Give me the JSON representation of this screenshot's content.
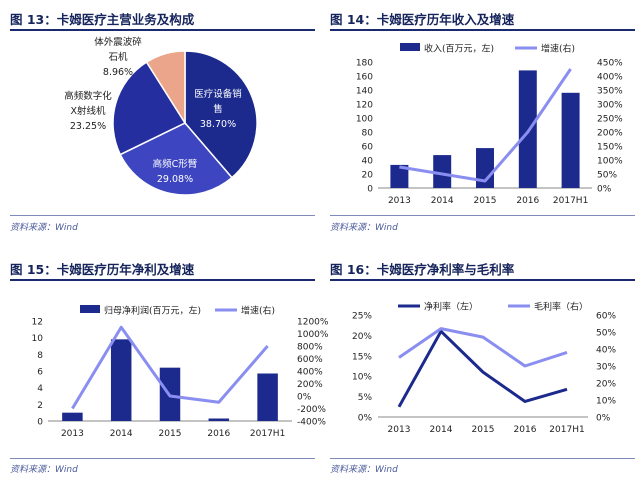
{
  "colors": {
    "navy": "#1b2a8c",
    "lavender": "#8a8ef0",
    "pie_salmon": "#eba58a",
    "pie_mid": "#252e9e",
    "pie_light": "#3d46c0"
  },
  "panels": {
    "p13": {
      "title": "图 13：卡姆医疗主营业务及构成",
      "source": "资料来源：Wind"
    },
    "p14": {
      "title": "图 14：卡姆医疗历年收入及增速",
      "source": "资料来源：Wind"
    },
    "p15": {
      "title": "图 15：卡姆医疗历年净利及增速",
      "source": "资料来源：Wind"
    },
    "p16": {
      "title": "图 16：卡姆医疗净利率与毛利率",
      "source": "资料来源：Wind"
    }
  },
  "chart_data": [
    {
      "id": "fig13",
      "type": "pie",
      "slices": [
        {
          "name": "医疗设备销售",
          "value": 38.7,
          "label": "38.70%"
        },
        {
          "name": "高频C形臂",
          "value": 29.08,
          "label": "29.08%"
        },
        {
          "name": "高频数字化X射线机",
          "value": 23.25,
          "label": "23.25%"
        },
        {
          "name": "体外震波碎石机",
          "value": 8.96,
          "label": "8.96%"
        }
      ]
    },
    {
      "id": "fig14",
      "type": "bar+line",
      "categories": [
        "2013",
        "2014",
        "2015",
        "2016",
        "2017H1"
      ],
      "bar": {
        "name": "收入(百万元，左)",
        "values": [
          33,
          47,
          57,
          168,
          136
        ]
      },
      "line": {
        "name": "增速(右)",
        "values": [
          75,
          50,
          25,
          200,
          425
        ]
      },
      "ylim_left": [
        0,
        180
      ],
      "yticks_left": [
        0,
        20,
        40,
        60,
        80,
        100,
        120,
        140,
        160,
        180
      ],
      "ylim_right": [
        0,
        450
      ],
      "yticks_right": [
        "0%",
        "50%",
        "100%",
        "150%",
        "200%",
        "250%",
        "300%",
        "350%",
        "400%",
        "450%"
      ]
    },
    {
      "id": "fig15",
      "type": "bar+line",
      "categories": [
        "2013",
        "2014",
        "2015",
        "2016",
        "2017H1"
      ],
      "bar": {
        "name": "归母净利润(百万元，左)",
        "values": [
          1.0,
          9.8,
          6.4,
          0.3,
          5.7
        ]
      },
      "line": {
        "name": "增速(右)",
        "values": [
          -200,
          1100,
          0,
          -100,
          800
        ]
      },
      "ylim_left": [
        0,
        12
      ],
      "yticks_left": [
        0,
        2,
        4,
        6,
        8,
        10,
        12
      ],
      "ylim_right": [
        -400,
        1200
      ],
      "yticks_right": [
        "-400%",
        "-200%",
        "0%",
        "200%",
        "400%",
        "600%",
        "800%",
        "1000%",
        "1200%"
      ]
    },
    {
      "id": "fig16",
      "type": "line",
      "categories": [
        "2013",
        "2014",
        "2015",
        "2016",
        "2017H1"
      ],
      "series": [
        {
          "name": "净利率（左）",
          "values": [
            2.5,
            21.0,
            11.0,
            3.8,
            6.8
          ]
        },
        {
          "name": "毛利率（右）",
          "values": [
            35,
            52,
            47,
            30,
            38
          ]
        }
      ],
      "ylim_left": [
        0,
        25
      ],
      "yticks_left": [
        "0%",
        "5%",
        "10%",
        "15%",
        "20%",
        "25%"
      ],
      "ylim_right": [
        0,
        60
      ],
      "yticks_right": [
        "0%",
        "10%",
        "20%",
        "30%",
        "40%",
        "50%",
        "60%"
      ]
    }
  ]
}
